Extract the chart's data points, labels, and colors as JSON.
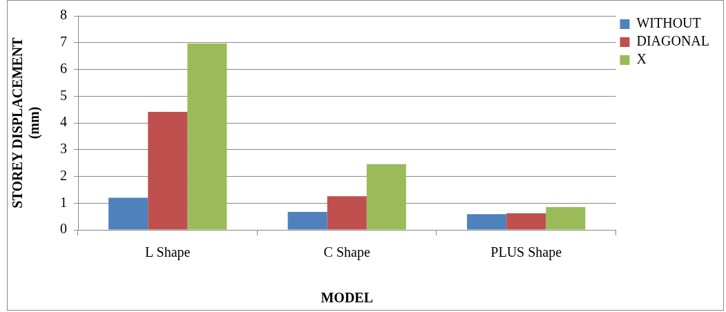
{
  "chart_data": {
    "type": "bar",
    "xlabel": "MODEL",
    "ylabel": "STOREY DISPLACEMENT\n(mm)",
    "categories": [
      "L Shape",
      "C Shape",
      "PLUS Shape"
    ],
    "series": [
      {
        "name": "WITHOUT",
        "color": "#4f81bd",
        "values": [
          1.2,
          0.67,
          0.59
        ]
      },
      {
        "name": "DIAGONAL",
        "color": "#c0504d",
        "values": [
          4.41,
          1.26,
          0.62
        ]
      },
      {
        "name": "X",
        "color": "#9bbb59",
        "values": [
          6.97,
          2.46,
          0.85
        ]
      }
    ],
    "ylim": [
      0,
      8
    ],
    "yticks": [
      0,
      1,
      2,
      3,
      4,
      5,
      6,
      7,
      8
    ],
    "grid": "y",
    "legend": "right"
  }
}
